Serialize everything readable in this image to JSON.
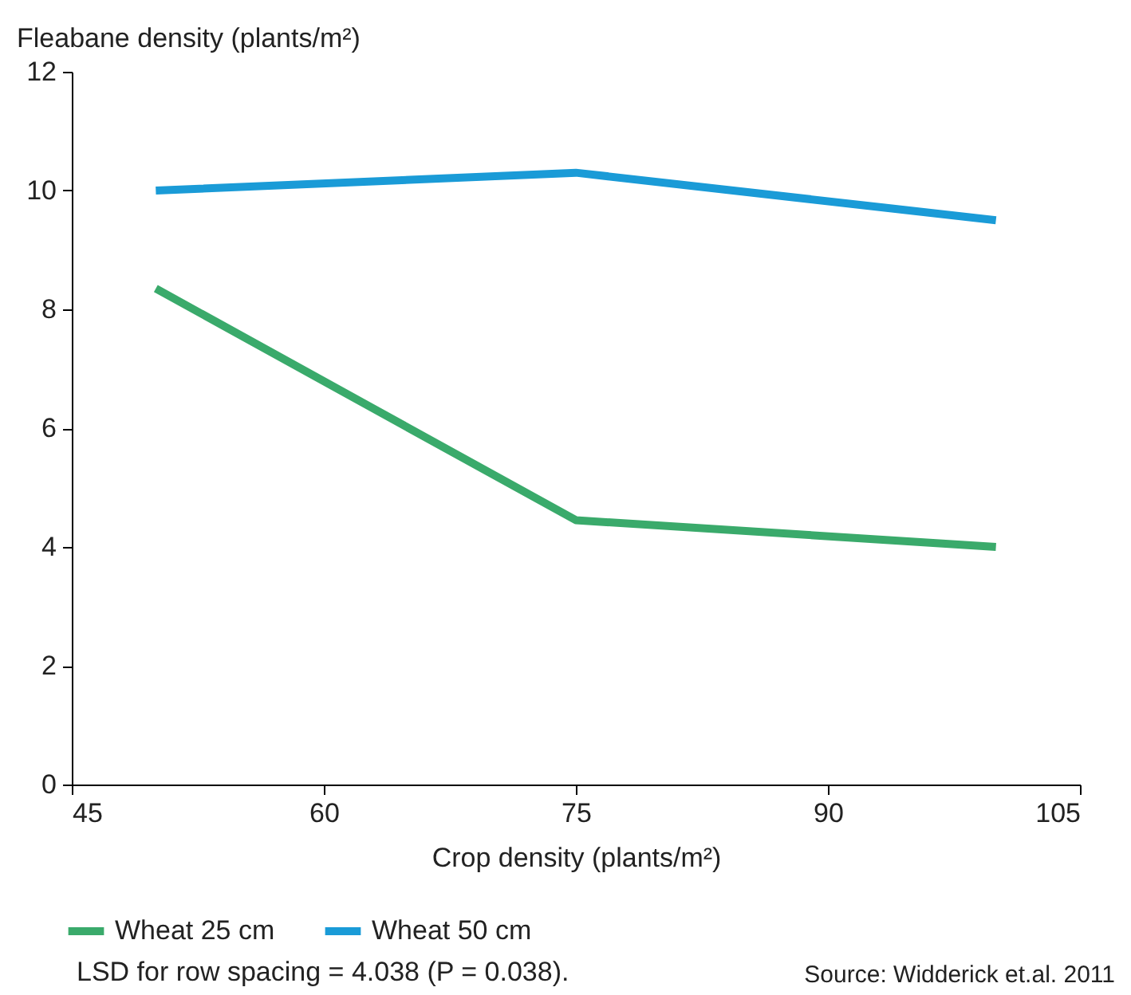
{
  "chart_data": {
    "type": "line",
    "ylabel": "Fleabane density (plants/m²)",
    "xlabel": "Crop density (plants/m²)",
    "x": [
      50,
      75,
      100
    ],
    "series": [
      {
        "name": "Wheat 25 cm",
        "color": "#3aaa6b",
        "values": [
          8.35,
          4.45,
          4.0
        ]
      },
      {
        "name": "Wheat 50 cm",
        "color": "#1a9bd7",
        "values": [
          10.0,
          10.3,
          9.5
        ]
      }
    ],
    "xlim": [
      45,
      105
    ],
    "xticks": [
      45,
      60,
      75,
      90,
      105
    ],
    "ylim": [
      0,
      12
    ],
    "yticks": [
      0,
      2,
      4,
      6,
      8,
      10,
      12
    ],
    "grid": false,
    "legend": "bottom",
    "marker": "none",
    "line_style": "solid",
    "annotations": [
      "LSD for row spacing = 4.038 (P = 0.038).",
      "Source: Widderick et.al. 2011"
    ]
  }
}
